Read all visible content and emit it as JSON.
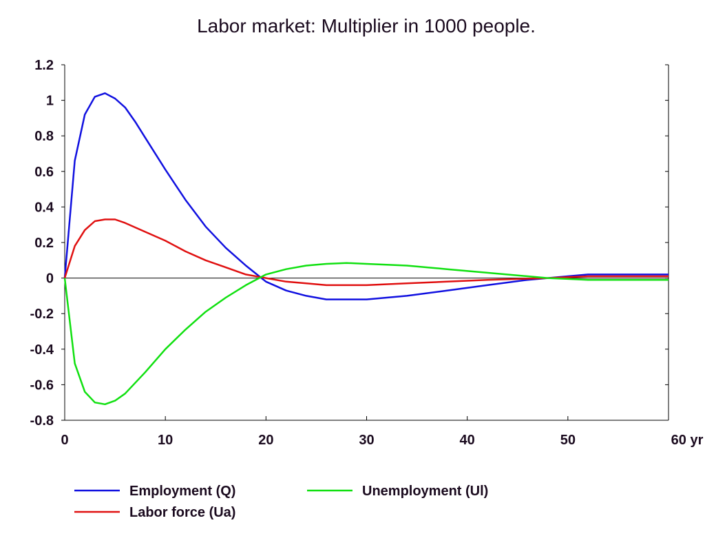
{
  "chart_data": {
    "type": "line",
    "title": "Labor market: Multiplier in 1000 people.",
    "xlabel": "",
    "ylabel": "",
    "xlim": [
      0,
      60
    ],
    "ylim": [
      -0.8,
      1.2
    ],
    "x_ticks": [
      0,
      10,
      20,
      30,
      40,
      50,
      60
    ],
    "x_tick_labels": [
      "0",
      "10",
      "20",
      "30",
      "40",
      "50",
      "60 yr"
    ],
    "y_ticks": [
      1.2,
      1,
      0.8,
      0.6,
      0.4,
      0.2,
      0,
      -0.2,
      -0.4,
      -0.6,
      -0.8
    ],
    "y_tick_labels": [
      "1.2",
      "1",
      "0.8",
      "0.6",
      "0.4",
      "0.2",
      "0",
      "-0.2",
      "-0.4",
      "-0.6",
      "-0.8"
    ],
    "grid": false,
    "legend_position": "bottom",
    "series": [
      {
        "name": "Employment (Q)",
        "color": "#1010e0",
        "points": [
          [
            0,
            0
          ],
          [
            1,
            0.66
          ],
          [
            2,
            0.92
          ],
          [
            3,
            1.02
          ],
          [
            4,
            1.04
          ],
          [
            5,
            1.01
          ],
          [
            6,
            0.96
          ],
          [
            7,
            0.88
          ],
          [
            8,
            0.79
          ],
          [
            10,
            0.61
          ],
          [
            12,
            0.44
          ],
          [
            14,
            0.29
          ],
          [
            16,
            0.17
          ],
          [
            18,
            0.07
          ],
          [
            20,
            -0.02
          ],
          [
            22,
            -0.07
          ],
          [
            24,
            -0.1
          ],
          [
            26,
            -0.12
          ],
          [
            28,
            -0.12
          ],
          [
            30,
            -0.12
          ],
          [
            34,
            -0.1
          ],
          [
            38,
            -0.07
          ],
          [
            42,
            -0.04
          ],
          [
            46,
            -0.01
          ],
          [
            48,
            0.0
          ],
          [
            50,
            0.01
          ],
          [
            52,
            0.02
          ],
          [
            56,
            0.02
          ],
          [
            60,
            0.02
          ]
        ]
      },
      {
        "name": "Labor force (Ua)",
        "color": "#e01010",
        "points": [
          [
            0,
            0
          ],
          [
            1,
            0.18
          ],
          [
            2,
            0.27
          ],
          [
            3,
            0.32
          ],
          [
            4,
            0.33
          ],
          [
            5,
            0.33
          ],
          [
            6,
            0.31
          ],
          [
            8,
            0.26
          ],
          [
            10,
            0.21
          ],
          [
            12,
            0.15
          ],
          [
            14,
            0.1
          ],
          [
            16,
            0.06
          ],
          [
            18,
            0.02
          ],
          [
            20,
            0.0
          ],
          [
            22,
            -0.02
          ],
          [
            24,
            -0.03
          ],
          [
            26,
            -0.04
          ],
          [
            28,
            -0.04
          ],
          [
            30,
            -0.04
          ],
          [
            34,
            -0.03
          ],
          [
            38,
            -0.02
          ],
          [
            42,
            -0.01
          ],
          [
            48,
            0.0
          ],
          [
            52,
            0.01
          ],
          [
            56,
            0.01
          ],
          [
            60,
            0.01
          ]
        ]
      },
      {
        "name": "Unemployment (Ul)",
        "color": "#10e010",
        "points": [
          [
            0,
            0
          ],
          [
            1,
            -0.48
          ],
          [
            2,
            -0.64
          ],
          [
            3,
            -0.7
          ],
          [
            4,
            -0.71
          ],
          [
            5,
            -0.69
          ],
          [
            6,
            -0.65
          ],
          [
            7,
            -0.59
          ],
          [
            8,
            -0.53
          ],
          [
            10,
            -0.4
          ],
          [
            12,
            -0.29
          ],
          [
            14,
            -0.19
          ],
          [
            16,
            -0.11
          ],
          [
            18,
            -0.04
          ],
          [
            20,
            0.02
          ],
          [
            22,
            0.05
          ],
          [
            24,
            0.07
          ],
          [
            26,
            0.08
          ],
          [
            28,
            0.085
          ],
          [
            30,
            0.08
          ],
          [
            34,
            0.07
          ],
          [
            38,
            0.05
          ],
          [
            42,
            0.03
          ],
          [
            46,
            0.01
          ],
          [
            48,
            0.0
          ],
          [
            50,
            -0.005
          ],
          [
            52,
            -0.01
          ],
          [
            56,
            -0.01
          ],
          [
            60,
            -0.01
          ]
        ]
      }
    ]
  }
}
